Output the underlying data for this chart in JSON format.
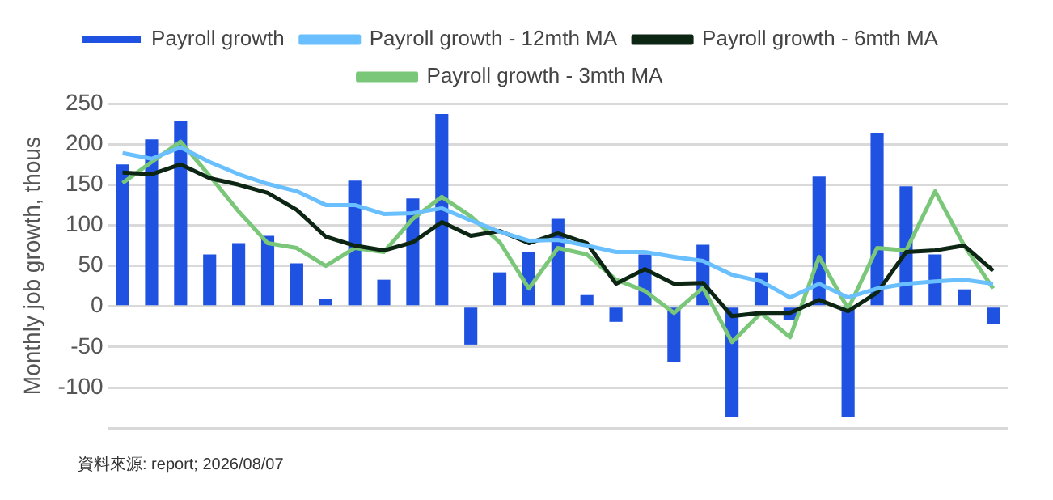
{
  "chart_data": {
    "type": "bar",
    "ylabel": "Monthly job growth, thous",
    "categories": [
      null,
      null,
      null,
      null,
      null,
      null,
      null,
      null,
      null,
      null,
      null,
      null,
      null,
      null,
      null,
      null,
      null,
      null,
      null,
      null,
      null,
      null,
      null,
      null,
      null,
      null,
      null,
      null,
      null,
      null,
      null
    ],
    "series": [
      {
        "name": "Payroll growth",
        "color": "#1f52e0",
        "values": [
          175,
          206,
          228,
          64,
          78,
          87,
          53,
          9,
          155,
          33,
          133,
          237,
          -47,
          42,
          67,
          108,
          14,
          -19,
          64,
          -69,
          76,
          -136,
          42,
          -17,
          160,
          -136,
          214,
          148,
          64,
          21,
          -22
        ]
      },
      {
        "name": "Payroll growth - 12mth MA",
        "type": "line",
        "color": "#6abfff",
        "values": [
          189,
          182,
          196,
          178,
          163,
          151,
          142,
          125,
          125,
          114,
          115,
          121,
          106,
          92,
          81,
          82,
          75,
          67,
          67,
          61,
          56,
          39,
          31,
          11,
          28,
          11,
          22,
          28,
          31,
          33,
          28
        ]
      },
      {
        "name": "Payroll growth - 6mth MA",
        "type": "line",
        "color": "#0d2614",
        "values": [
          165,
          163,
          175,
          158,
          150,
          140,
          119,
          86,
          75,
          69,
          79,
          104,
          87,
          93,
          78,
          90,
          78,
          28,
          46,
          28,
          29,
          -12,
          -8,
          -8,
          8,
          -6,
          17,
          67,
          69,
          75,
          44
        ]
      },
      {
        "name": "Payroll growth - 3mth MA",
        "type": "line",
        "color": "#7ac77a",
        "values": [
          152,
          178,
          203,
          161,
          117,
          78,
          72,
          50,
          72,
          67,
          108,
          135,
          111,
          79,
          22,
          72,
          64,
          33,
          19,
          -8,
          23,
          -44,
          -8,
          -38,
          61,
          -3,
          72,
          69,
          142,
          75,
          22
        ]
      }
    ],
    "ylim": [
      -150,
      250
    ],
    "yticks": [
      {
        "value": -150,
        "label": null
      },
      -100,
      -50,
      0,
      50,
      100,
      150,
      200,
      250
    ],
    "grid": "y",
    "legend": "top",
    "marker": "none",
    "annotations": [
      "資料來源: report; 2026/08/07"
    ]
  }
}
